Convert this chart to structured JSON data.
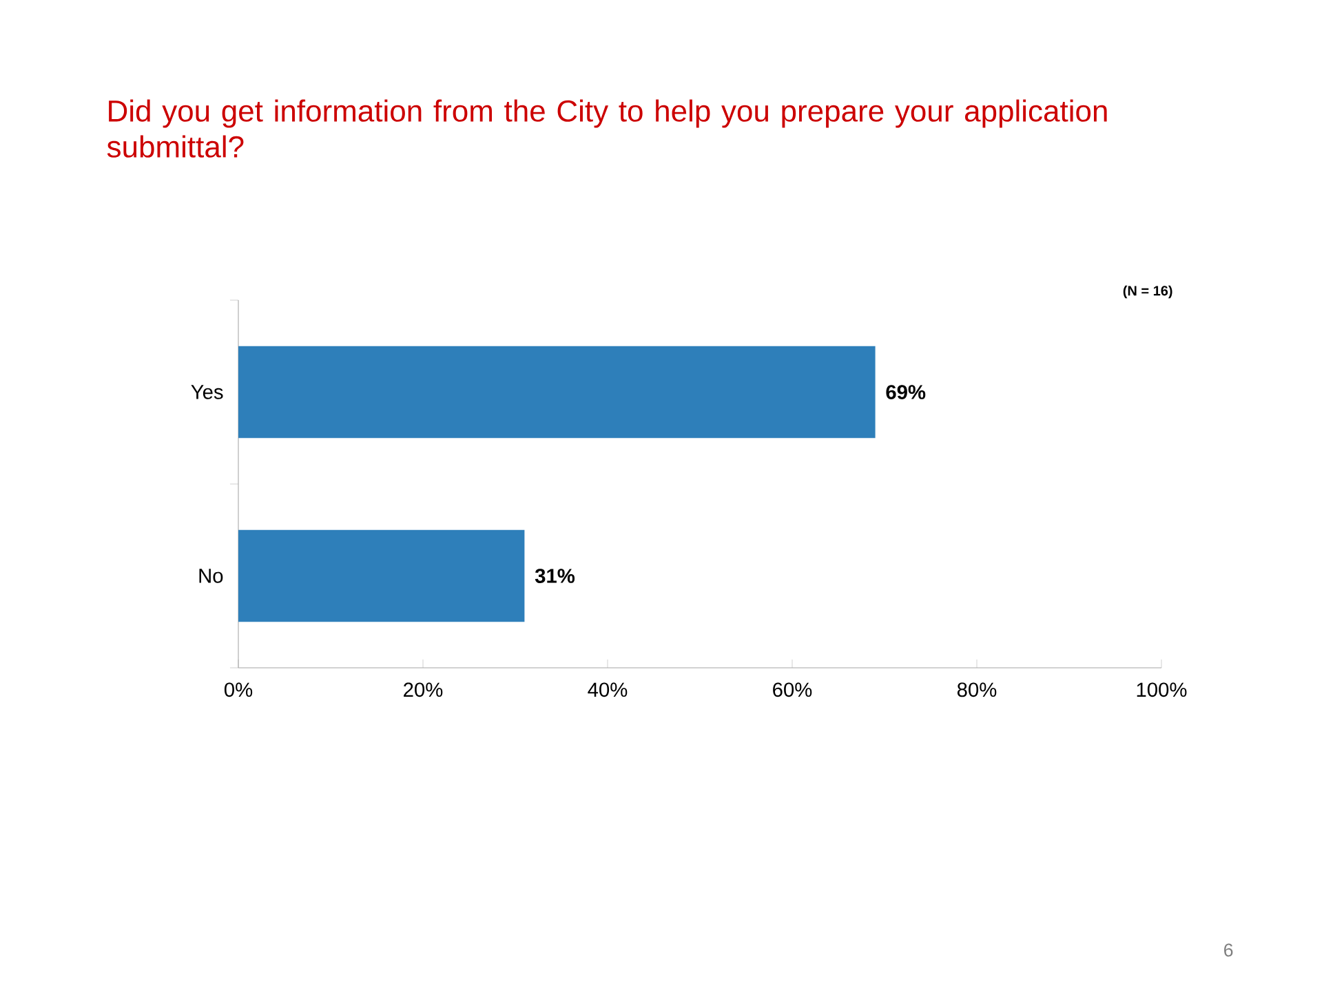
{
  "chart_data": {
    "type": "bar",
    "orientation": "horizontal",
    "title": "Did you get information from the City to help you prepare your application submittal?",
    "categories": [
      "Yes",
      "No"
    ],
    "values": [
      69,
      31
    ],
    "value_labels": [
      "69%",
      "31%"
    ],
    "color": "#2e7fba",
    "xlim": [
      0,
      100
    ],
    "xticks": [
      {
        "value": 0,
        "label": "0%"
      },
      {
        "value": 20,
        "label": "20%"
      },
      {
        "value": 40,
        "label": "40%"
      },
      {
        "value": 60,
        "label": "60%"
      },
      {
        "value": 80,
        "label": "80%"
      },
      {
        "value": 100,
        "label": "100%"
      }
    ],
    "annotations": [
      "(N = 16)",
      "6"
    ]
  }
}
